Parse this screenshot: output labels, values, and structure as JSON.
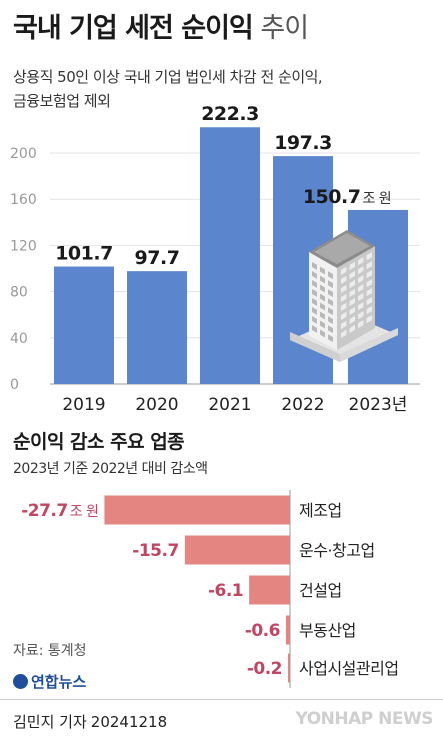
{
  "header": {
    "title_bold": "국내 기업 세전 순이익",
    "title_light": " 추이",
    "subtitle_line1": "상용직 50인 이상 국내 기업 법인세 차감 전 순이익,",
    "subtitle_line2": "금융보험업 제외"
  },
  "section2": {
    "title": "순이익 감소 주요 업종",
    "subtitle": "2023년 기준 2022년 대비 감소액"
  },
  "chart_data": [
    {
      "type": "bar",
      "categories": [
        "2019",
        "2020",
        "2021",
        "2022",
        "2023년"
      ],
      "values": [
        101.7,
        97.7,
        222.3,
        197.3,
        150.7
      ],
      "value_labels": [
        "101.7",
        "97.7",
        "222.3",
        "197.3",
        "150.7"
      ],
      "unit_label": "조 원",
      "ylim": [
        0,
        240
      ],
      "yticks": [
        0,
        40,
        80,
        120,
        160,
        200
      ],
      "grid": true,
      "bar_color": "#5b86cd"
    },
    {
      "type": "bar",
      "orientation": "horizontal",
      "categories": [
        "제조업",
        "운수·창고업",
        "건설업",
        "부동산업",
        "사업시설관리업"
      ],
      "values": [
        -27.7,
        -15.7,
        -6.1,
        -0.6,
        -0.2
      ],
      "value_labels": [
        "-27.7",
        "-15.7",
        "-6.1",
        "-0.6",
        "-0.2"
      ],
      "unit_label": "조 원",
      "bar_color": "#e48582"
    }
  ],
  "footer": {
    "source": "자료: 통계청",
    "agency": "연합뉴스",
    "reporter": "김민지 기자",
    "date": "20241218",
    "watermark": "YONHAP NEWS"
  }
}
